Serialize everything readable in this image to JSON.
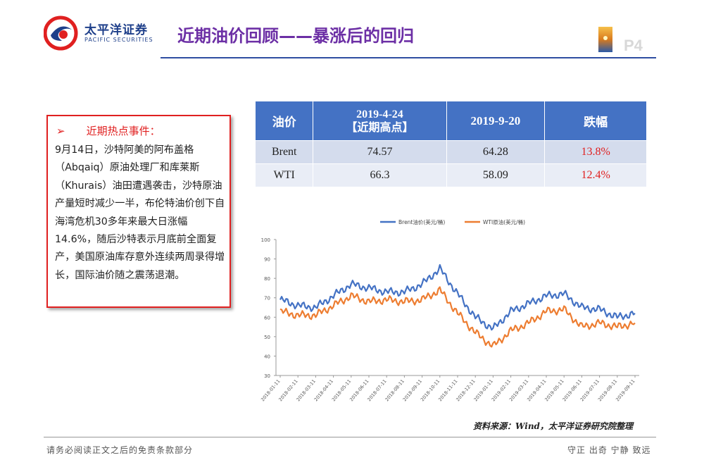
{
  "header": {
    "logo_cn": "太平洋证券",
    "logo_en": "PACIFIC SECURITIES",
    "title": "近期油价回顾——暴涨后的回归",
    "page": "P4"
  },
  "event": {
    "heading": "近期热点事件：",
    "arrow": "➢",
    "body": "9月14日，沙特阿美的阿布盖格（Abqaiq）原油处理厂和库莱斯（Khurais）油田遭遇袭击，沙特原油产量短时减少一半，布伦特油价创下自海湾危机30多年来最大日涨幅14.6%，随后沙特表示月底前全面复产，美国原油库存意外连续两周录得增长，国际油价随之震荡退潮。"
  },
  "table": {
    "headers": [
      "油价",
      "2019-4-24",
      "【近期高点】",
      "2019-9-20",
      "跌幅"
    ],
    "rows": [
      {
        "name": "Brent",
        "peak": "74.57",
        "current": "64.28",
        "drop": "13.8%"
      },
      {
        "name": "WTI",
        "peak": "66.3",
        "current": "58.09",
        "drop": "12.4%"
      }
    ]
  },
  "chart_data": {
    "type": "line",
    "title": "",
    "xlabel": "",
    "ylabel": "",
    "ylim": [
      30,
      100
    ],
    "yticks": [
      30,
      40,
      50,
      60,
      70,
      80,
      90,
      100
    ],
    "x": [
      "2018-01-11",
      "2018-02-11",
      "2018-03-11",
      "2018-04-11",
      "2018-05-11",
      "2018-06-11",
      "2018-07-11",
      "2018-08-11",
      "2018-09-11",
      "2018-10-11",
      "2018-11-11",
      "2018-12-11",
      "2019-01-11",
      "2019-02-11",
      "2019-03-11",
      "2019-04-11",
      "2019-05-11",
      "2019-06-11",
      "2019-07-11",
      "2019-08-11",
      "2019-09-11"
    ],
    "grid": false,
    "legend_position": "top",
    "series": [
      {
        "name": "Brent油价(美元/桶)",
        "color": "#4472c4",
        "values": [
          69,
          66,
          65,
          71,
          77,
          75,
          73,
          73,
          77,
          85,
          72,
          60,
          54,
          63,
          67,
          71,
          72,
          65,
          64,
          60,
          62
        ]
      },
      {
        "name": "WTI原油(美元/桶)",
        "color": "#ed7d31",
        "values": [
          63,
          61,
          61,
          66,
          71,
          68,
          69,
          68,
          69,
          74,
          62,
          52,
          45,
          53,
          57,
          63,
          64,
          55,
          57,
          55,
          57
        ]
      }
    ]
  },
  "source": "资料来源：Wind，太平洋证券研究院整理",
  "footer": {
    "disclaimer": "请务必阅读正文之后的免责条款部分",
    "motto": "守正  出奇  宁静  致远"
  }
}
